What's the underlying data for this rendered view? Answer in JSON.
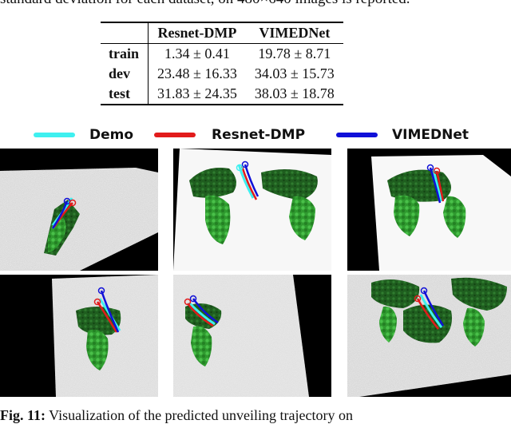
{
  "header_text": "standard deviation for each dataset, on 480×640 images is reported.",
  "table": {
    "columns": [
      "",
      "Resnet-DMP",
      "VIMEDNet"
    ],
    "rows": [
      {
        "label": "train",
        "resnet": "1.34 ± 0.41",
        "vimednet": "19.78 ± 8.71"
      },
      {
        "label": "dev",
        "resnet": "23.48 ± 16.33",
        "vimednet": "34.03 ± 15.73"
      },
      {
        "label": "test",
        "resnet": "31.83 ± 24.35",
        "vimednet": "38.03 ± 18.78"
      }
    ]
  },
  "legend": {
    "demo": {
      "label": "Demo",
      "color": "#3ef0f0"
    },
    "resnet": {
      "label": "Resnet-DMP",
      "color": "#e21b1b"
    },
    "vimednet": {
      "label": "VIMEDNet",
      "color": "#1010d8"
    }
  },
  "caption": {
    "label": "Fig. 11:",
    "text": " Visualization of the predicted unveiling trajectory on"
  }
}
